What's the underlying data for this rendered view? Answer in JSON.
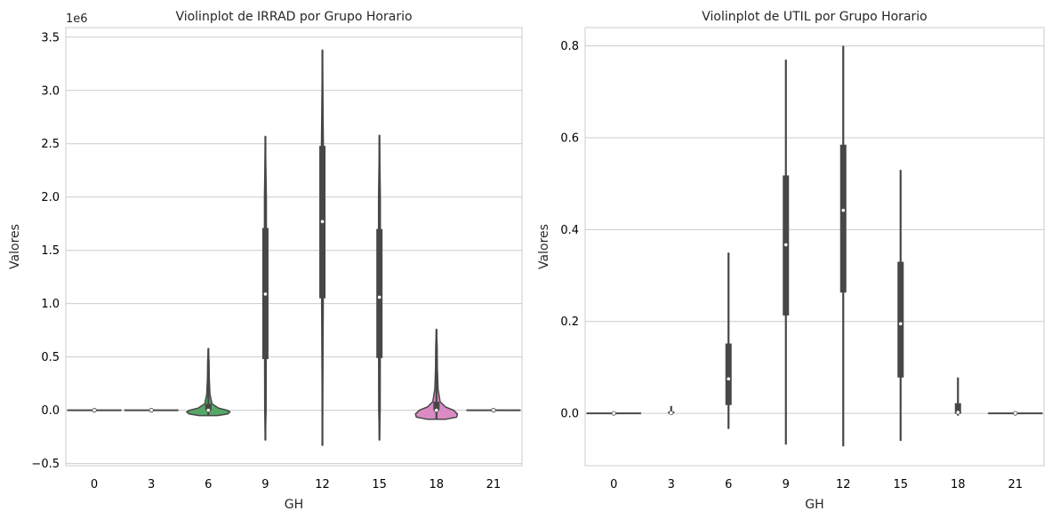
{
  "chart_data": [
    {
      "type": "violin",
      "title": "Violinplot de IRRAD por Grupo Horario",
      "xlabel": "GH",
      "ylabel": "Valores",
      "offset_text": "1e6",
      "categories": [
        "0",
        "3",
        "6",
        "9",
        "12",
        "15",
        "18",
        "21"
      ],
      "ylim": [
        -520000,
        3590000
      ],
      "yticks": [
        -0.5,
        0.0,
        0.5,
        1.0,
        1.5,
        2.0,
        2.5,
        3.0,
        3.5
      ],
      "ytick_labels": [
        "−0.5",
        "0.0",
        "0.5",
        "1.0",
        "1.5",
        "2.0",
        "2.5",
        "3.0",
        "3.5"
      ],
      "ytick_scale": 1000000,
      "grid": true,
      "violins": [
        {
          "min": 0,
          "max": 0,
          "q1": 0,
          "median": 0,
          "q3": 0,
          "color": "#4c72b0",
          "flat_width": 0.95
        },
        {
          "min": 0,
          "max": 0,
          "q1": 0,
          "median": 0,
          "q3": 0,
          "color": "#dd8452",
          "flat_width": 0.95
        },
        {
          "min": -50000,
          "max": 580000,
          "q1": 0,
          "median": 0,
          "q3": 60000,
          "color": "#55a868",
          "profile": [
            [
              -50000,
              0.4
            ],
            [
              -35000,
              0.85
            ],
            [
              -15000,
              0.95
            ],
            [
              0,
              0.82
            ],
            [
              20000,
              0.45
            ],
            [
              60000,
              0.16
            ],
            [
              150000,
              0.07
            ],
            [
              300000,
              0.04
            ],
            [
              450000,
              0.03
            ],
            [
              580000,
              0.0
            ]
          ]
        },
        {
          "min": -280000,
          "max": 2570000,
          "q1": 480000,
          "median": 1090000,
          "q3": 1710000,
          "color": "#c44e52",
          "profile": [
            [
              -280000,
              0.0
            ],
            [
              0,
              0.03
            ],
            [
              1000000,
              0.04
            ],
            [
              2000000,
              0.04
            ],
            [
              2570000,
              0.0
            ]
          ]
        },
        {
          "min": -330000,
          "max": 3380000,
          "q1": 1050000,
          "median": 1770000,
          "q3": 2480000,
          "color": "#8172b3",
          "profile": [
            [
              -330000,
              0.0
            ],
            [
              1000000,
              0.035
            ],
            [
              2500000,
              0.04
            ],
            [
              3380000,
              0.0
            ]
          ]
        },
        {
          "min": -280000,
          "max": 2580000,
          "q1": 490000,
          "median": 1060000,
          "q3": 1700000,
          "color": "#937860",
          "profile": [
            [
              -280000,
              0.0
            ],
            [
              0,
              0.03
            ],
            [
              1000000,
              0.04
            ],
            [
              2000000,
              0.04
            ],
            [
              2580000,
              0.0
            ]
          ]
        },
        {
          "min": -85000,
          "max": 760000,
          "q1": 0,
          "median": 0,
          "q3": 80000,
          "color": "#da8bc3",
          "profile": [
            [
              -85000,
              0.4
            ],
            [
              -65000,
              0.88
            ],
            [
              -35000,
              0.92
            ],
            [
              0,
              0.75
            ],
            [
              30000,
              0.4
            ],
            [
              80000,
              0.16
            ],
            [
              200000,
              0.07
            ],
            [
              400000,
              0.04
            ],
            [
              600000,
              0.03
            ],
            [
              760000,
              0.0
            ]
          ]
        },
        {
          "min": 0,
          "max": 0,
          "q1": 0,
          "median": 0,
          "q3": 0,
          "color": "#8c8c8c",
          "flat_width": 0.95
        }
      ]
    },
    {
      "type": "violin",
      "title": "Violinplot de UTIL por Grupo Horario",
      "xlabel": "GH",
      "ylabel": "Valores",
      "categories": [
        "0",
        "3",
        "6",
        "9",
        "12",
        "15",
        "18",
        "21"
      ],
      "ylim": [
        -0.114,
        0.84
      ],
      "yticks": [
        0.0,
        0.2,
        0.4,
        0.6,
        0.8
      ],
      "ytick_labels": [
        "0.0",
        "0.2",
        "0.4",
        "0.6",
        "0.8"
      ],
      "ytick_scale": 1,
      "grid": true,
      "violins": [
        {
          "min": 0,
          "max": 0,
          "q1": 0,
          "median": 0,
          "q3": 0,
          "color": "#4c72b0",
          "flat_width": 0.95
        },
        {
          "min": -0.002,
          "max": 0.016,
          "q1": 0,
          "median": 0.001,
          "q3": 0.004,
          "color": "#dd8452"
        },
        {
          "min": -0.034,
          "max": 0.35,
          "q1": 0.018,
          "median": 0.075,
          "q3": 0.152,
          "color": "#55a868"
        },
        {
          "min": -0.068,
          "max": 0.77,
          "q1": 0.213,
          "median": 0.367,
          "q3": 0.518,
          "color": "#c44e52"
        },
        {
          "min": -0.072,
          "max": 0.8,
          "q1": 0.263,
          "median": 0.442,
          "q3": 0.585,
          "color": "#8172b3"
        },
        {
          "min": -0.06,
          "max": 0.53,
          "q1": 0.078,
          "median": 0.195,
          "q3": 0.33,
          "color": "#937860"
        },
        {
          "min": -0.005,
          "max": 0.078,
          "q1": -0.001,
          "median": 0.002,
          "q3": 0.022,
          "color": "#da8bc3"
        },
        {
          "min": 0,
          "max": 0,
          "q1": 0,
          "median": 0,
          "q3": 0,
          "color": "#8c8c8c",
          "flat_width": 0.95
        }
      ]
    }
  ]
}
